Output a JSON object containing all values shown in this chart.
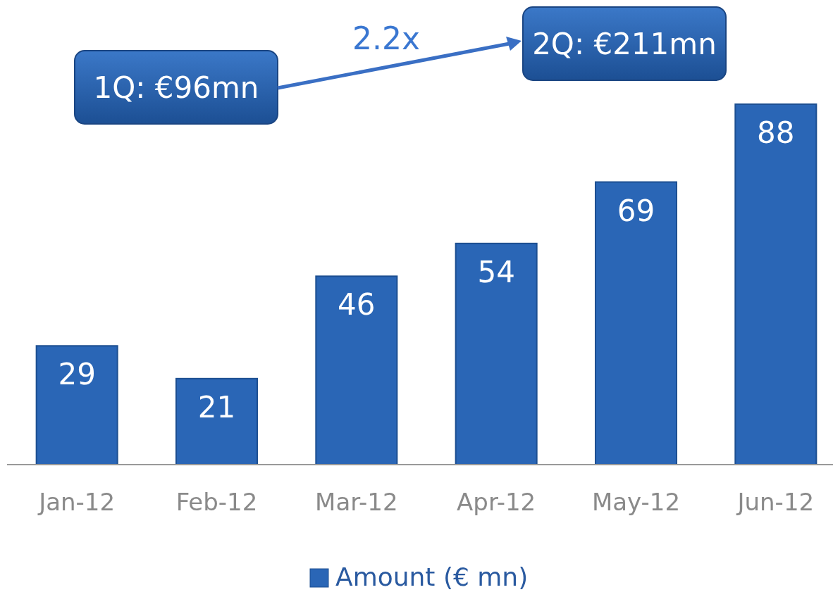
{
  "chart_data": {
    "type": "bar",
    "categories": [
      "Jan-12",
      "Feb-12",
      "Mar-12",
      "Apr-12",
      "May-12",
      "Jun-12"
    ],
    "series": [
      {
        "name": "Amount (€ mn)",
        "color": "#2a66b6",
        "values": [
          29,
          21,
          46,
          54,
          69,
          88
        ]
      }
    ],
    "data_labels": true,
    "legend": "bottom",
    "annotations": [
      "1Q: €96mn",
      "2Q: €211mn",
      "2.2x"
    ]
  }
}
